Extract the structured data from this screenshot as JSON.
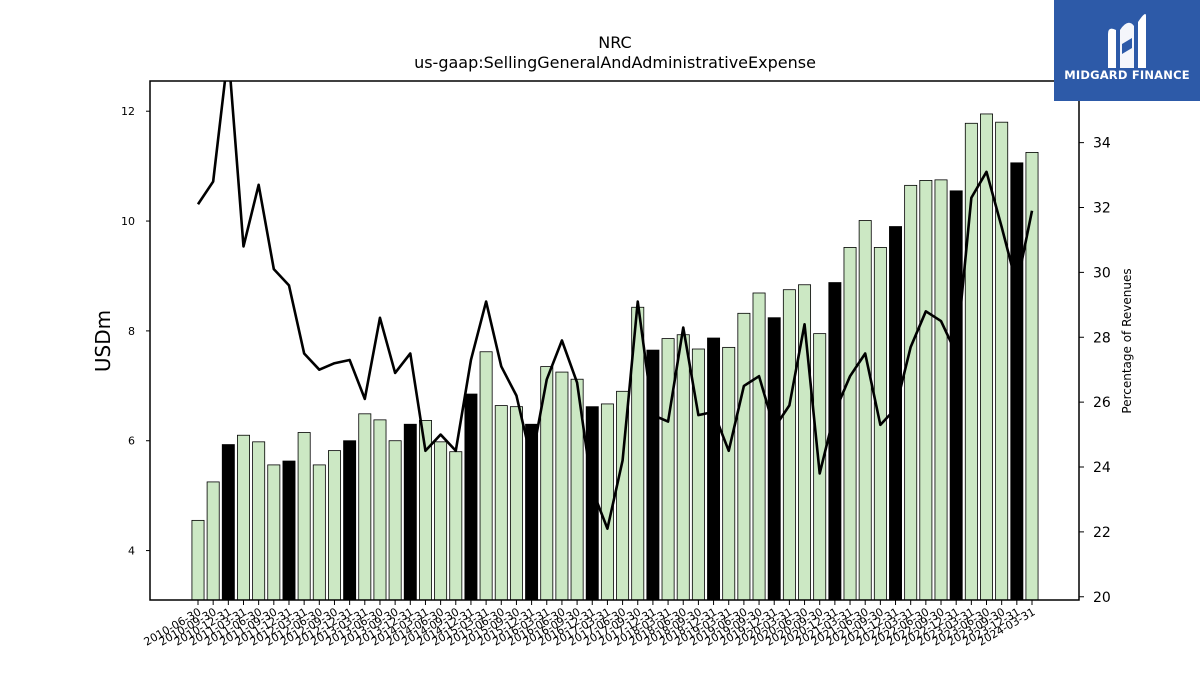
{
  "chart_data": {
    "type": "bar",
    "title": "NRC",
    "subtitle": "us-gaap:SellingGeneralAndAdministrativeExpense",
    "ylabel": "USDm",
    "y2label": "Percentage of Revenues",
    "ylim": [
      3.1,
      12.55
    ],
    "y2lim": [
      19.9,
      35.9
    ],
    "yticks": [
      4,
      6,
      8,
      10,
      12
    ],
    "y2ticks": [
      20,
      22,
      24,
      26,
      28,
      30,
      32,
      34
    ],
    "categories": [
      "2010-06-30",
      "2010-09-30",
      "2010-12-31",
      "2011-03-31",
      "2011-06-30",
      "2011-09-30",
      "2011-12-31",
      "2012-03-31",
      "2012-06-30",
      "2012-09-30",
      "2012-12-31",
      "2013-03-31",
      "2013-06-30",
      "2013-09-30",
      "2013-12-31",
      "2014-03-31",
      "2014-06-30",
      "2014-09-30",
      "2014-12-31",
      "2015-03-31",
      "2015-06-30",
      "2015-09-30",
      "2015-12-31",
      "2016-03-31",
      "2016-06-30",
      "2016-09-30",
      "2016-12-31",
      "2017-03-31",
      "2017-06-30",
      "2017-09-30",
      "2017-12-31",
      "2018-03-31",
      "2018-06-30",
      "2018-09-30",
      "2018-12-31",
      "2019-03-31",
      "2019-06-30",
      "2019-09-30",
      "2019-12-31",
      "2020-03-31",
      "2020-06-30",
      "2020-09-30",
      "2020-12-31",
      "2021-03-31",
      "2021-06-30",
      "2021-09-30",
      "2021-12-31",
      "2022-03-31",
      "2022-06-30",
      "2022-09-30",
      "2022-12-31",
      "2023-03-31",
      "2023-06-30",
      "2023-09-30",
      "2023-12-31",
      "2024-03-31"
    ],
    "tick_labels": [
      "2010-06-30",
      "2010-09-30",
      "2010-12-31",
      "2011-03-31",
      "2011-06-30",
      "2011-09-30",
      "2011-12-31",
      "2012-03-31",
      "2012-06-30",
      "2012-09-30",
      "2012-12-31",
      "2013-03-31",
      "2013-06-30",
      "2013-09-30",
      "2013-12-31",
      "2014-03-31",
      "2014-06-30",
      "2014-09-30",
      "2014-12-31",
      "2015-03-31",
      "2015-06-30",
      "2015-09-30",
      "2015-12-31",
      "2016-03-31",
      "2016-06-30",
      "2016-09-30",
      "2016-12-31",
      "2017-03-31",
      "2017-06-30",
      "2017-09-30",
      "2017-12-31",
      "2018-03-31",
      "2018-06-30",
      "2018-09-30",
      "2018-12-31",
      "2019-03-31",
      "2019-06-30",
      "2019-09-30",
      "2019-12-31",
      "2020-03-31",
      "2020-06-30",
      "2020-09-30",
      "2020-12-31",
      "2021-03-31",
      "2021-06-30",
      "2021-09-30",
      "2021-12-31",
      "2022-03-31",
      "2022-06-30",
      "2022-09-30",
      "2022-12-31",
      "2023-03-31",
      "2023-06-30",
      "2023-09-30",
      "2023-12-31",
      "2024-03-31"
    ],
    "series": [
      {
        "values": [
          4.55,
          5.25,
          5.93,
          6.1,
          5.98,
          5.56,
          5.63,
          6.15,
          5.56,
          5.82,
          6.0,
          6.49,
          6.38,
          6.0,
          6.3,
          6.37,
          5.98,
          5.8,
          6.85,
          7.62,
          6.64,
          6.62,
          6.3,
          7.35,
          7.25,
          7.12,
          6.62,
          6.67,
          6.9,
          8.43,
          7.65,
          7.86,
          7.93,
          7.67,
          7.87,
          7.7,
          8.32,
          8.69,
          8.24,
          8.75,
          8.84,
          7.95,
          8.88,
          9.52,
          10.01,
          9.52,
          9.9,
          10.65,
          10.74,
          10.75,
          10.55,
          11.78,
          11.95,
          11.8,
          11.06,
          11.25
        ],
        "is_year_end": [
          false,
          false,
          true,
          false,
          false,
          false,
          true,
          false,
          false,
          false,
          true,
          false,
          false,
          false,
          true,
          false,
          false,
          false,
          true,
          false,
          false,
          false,
          true,
          false,
          false,
          false,
          true,
          false,
          false,
          false,
          true,
          false,
          false,
          false,
          true,
          false,
          false,
          false,
          true,
          false,
          false,
          false,
          true,
          false,
          false,
          false,
          true,
          false,
          false,
          false,
          true,
          false,
          false,
          false,
          true,
          false
        ]
      },
      {
        "axis": "right",
        "values": [
          32.1,
          32.8,
          36.8,
          30.8,
          32.7,
          30.1,
          29.6,
          27.5,
          27.0,
          27.2,
          27.3,
          26.1,
          28.6,
          26.9,
          27.5,
          24.5,
          25.0,
          24.5,
          27.3,
          29.1,
          27.1,
          26.2,
          24.2,
          26.7,
          27.9,
          26.6,
          23.3,
          22.1,
          24.2,
          29.1,
          25.6,
          25.4,
          28.3,
          25.6,
          25.7,
          24.5,
          26.5,
          26.8,
          25.2,
          25.9,
          28.4,
          23.8,
          25.7,
          26.8,
          27.5,
          25.3,
          25.8,
          27.7,
          28.8,
          28.5,
          27.5,
          32.3,
          33.1,
          31.4,
          29.6,
          31.9
        ]
      }
    ],
    "colors": {
      "bar_fill": "#cce8c4",
      "bar_year_end": "#000000",
      "bar_edge": "#000000",
      "line": "#000000",
      "logo_bg": "#2d5aa8"
    },
    "grid": false
  },
  "logo": {
    "text": "MIDGARD FINANCE",
    "icon": "midgard-logo-icon"
  }
}
